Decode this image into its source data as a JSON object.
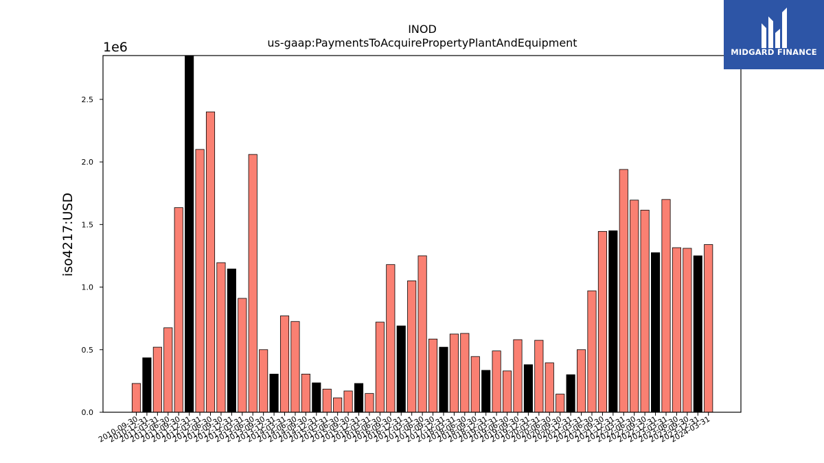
{
  "brand": {
    "name": "MIDGARD FINANCE",
    "bg_color": "#2d55a6"
  },
  "chart_data": {
    "type": "bar",
    "title": "INOD",
    "subtitle": "us-gaap:PaymentsToAcquirePropertyPlantAndEquipment",
    "xlabel": "",
    "ylabel": "iso4217:USD",
    "offset_label": "1e6",
    "ylim": [
      0,
      2850000
    ],
    "yticks": [
      0,
      500000,
      1000000,
      1500000,
      2000000,
      2500000
    ],
    "ytick_labels": [
      "0.0",
      "0.5",
      "1.0",
      "1.5",
      "2.0",
      "2.5"
    ],
    "grid": false,
    "colors": {
      "quarter": "#fa8072",
      "annual": "#000000"
    },
    "categories": [
      "2010-09-30",
      "2010-12-31",
      "2011-03-31",
      "2011-06-30",
      "2011-09-30",
      "2011-12-31",
      "2012-03-31",
      "2012-06-30",
      "2012-09-30",
      "2012-12-31",
      "2013-03-31",
      "2013-06-30",
      "2013-09-30",
      "2013-12-31",
      "2014-03-31",
      "2014-06-30",
      "2014-09-30",
      "2014-12-31",
      "2015-03-31",
      "2015-06-30",
      "2015-09-30",
      "2015-12-31",
      "2016-03-31",
      "2016-06-30",
      "2016-09-30",
      "2016-12-31",
      "2017-03-31",
      "2017-06-30",
      "2017-09-30",
      "2017-12-31",
      "2018-03-31",
      "2018-06-30",
      "2018-09-30",
      "2018-12-31",
      "2019-03-31",
      "2019-06-30",
      "2019-09-30",
      "2019-12-31",
      "2020-03-31",
      "2020-06-30",
      "2020-09-30",
      "2020-12-31",
      "2021-03-31",
      "2021-06-30",
      "2021-09-30",
      "2021-12-31",
      "2022-03-31",
      "2022-06-30",
      "2022-09-30",
      "2022-12-31",
      "2023-03-31",
      "2023-06-30",
      "2023-09-30",
      "2023-12-31",
      "2024-03-31"
    ],
    "values": [
      230000,
      435000,
      520000,
      675000,
      1635000,
      2850000,
      2100000,
      2400000,
      1195000,
      1145000,
      910000,
      2060000,
      500000,
      305000,
      770000,
      725000,
      305000,
      235000,
      185000,
      115000,
      170000,
      230000,
      150000,
      720000,
      1180000,
      690000,
      1050000,
      1250000,
      585000,
      520000,
      625000,
      630000,
      445000,
      335000,
      490000,
      330000,
      580000,
      380000,
      575000,
      395000,
      145000,
      300000,
      500000,
      970000,
      1445000,
      1450000,
      1940000,
      1695000,
      1615000,
      1275000,
      1700000,
      1315000,
      1310000,
      1250000,
      1340000
    ],
    "highlight": [
      false,
      true,
      false,
      false,
      false,
      true,
      false,
      false,
      false,
      true,
      false,
      false,
      false,
      true,
      false,
      false,
      false,
      true,
      false,
      false,
      false,
      true,
      false,
      false,
      false,
      true,
      false,
      false,
      false,
      true,
      false,
      false,
      false,
      true,
      false,
      false,
      false,
      true,
      false,
      false,
      false,
      true,
      false,
      false,
      false,
      true,
      false,
      false,
      false,
      true,
      false,
      false,
      false,
      true,
      false
    ]
  }
}
